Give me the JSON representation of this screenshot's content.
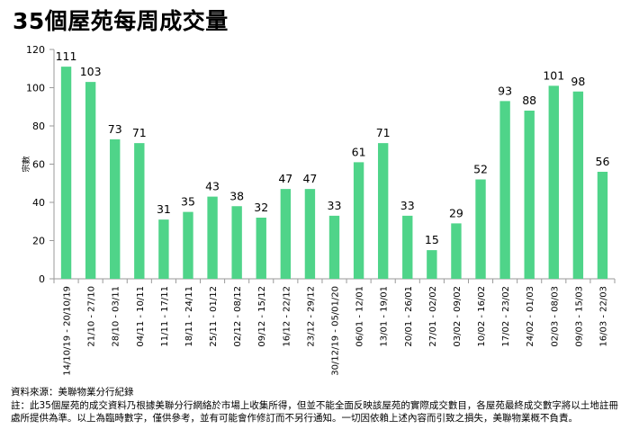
{
  "page": {
    "title": "35個屋苑每周成交量"
  },
  "chart_data": {
    "type": "bar",
    "title": "35個屋苑每周成交量",
    "xlabel": "",
    "ylabel": "宗數",
    "ylim": [
      0,
      120
    ],
    "yticks": [
      0,
      20,
      40,
      60,
      80,
      100,
      120
    ],
    "grid": false,
    "bar_color": "#4fd489",
    "categories": [
      "14/10/19 - 20/10/19",
      "21/10 - 27/10",
      "28/10 - 03/11",
      "04/11 - 10/11",
      "11/11 - 17/11",
      "18/11 - 24/11",
      "25/11 - 01/12",
      "02/12 - 08/12",
      "09/12 - 15/12",
      "16/12 - 22/12",
      "23/12 - 29/12",
      "30/12/19 - 05/01/20",
      "06/01 - 12/01",
      "13/01 - 19/01",
      "20/01 - 26/01",
      "27/01 - 02/02",
      "03/02 - 09/02",
      "10/02 - 16/02",
      "17/02 - 23/02",
      "24/02 - 01/03",
      "02/03 - 08/03",
      "09/03 - 15/03",
      "16/03 - 22/03"
    ],
    "values": [
      111,
      103,
      73,
      71,
      31,
      35,
      43,
      38,
      32,
      47,
      47,
      33,
      61,
      71,
      33,
      15,
      29,
      52,
      93,
      88,
      101,
      98,
      56
    ]
  },
  "footer": {
    "source": "資料來源：美聯物業分行紀錄",
    "note": "註：此35個屋苑的成交資料乃根據美聯分行網絡於市場上收集所得，但並不能全面反映該屋苑的實際成交數目，各屋苑最終成交數字將以土地註冊處所提供為準。以上為臨時數字，僅供參考，並有可能會作修訂而不另行通知。一切因依賴上述內容而引致之損失，美聯物業概不負責。"
  }
}
